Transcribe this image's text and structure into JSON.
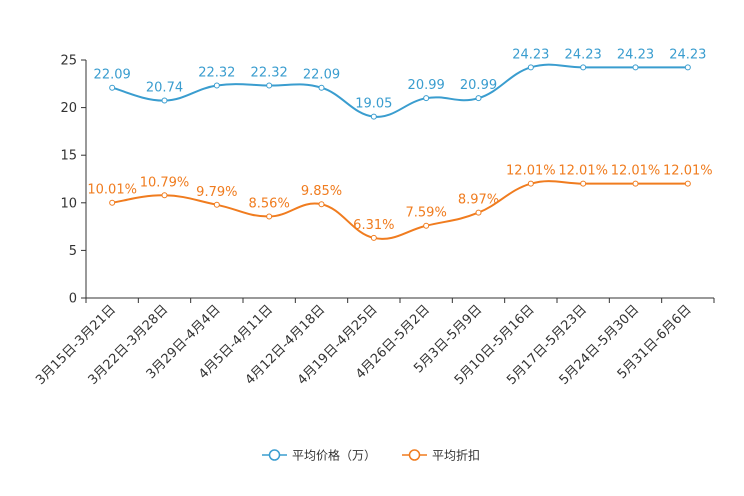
{
  "chart_data": {
    "type": "line",
    "categories": [
      "3月15日-3月21日",
      "3月22日-3月28日",
      "3月29日-4月4日",
      "4月5日-4月11日",
      "4月12日-4月18日",
      "4月19日-4月25日",
      "4月26日-5月2日",
      "5月3日-5月9日",
      "5月10日-5月16日",
      "5月17日-5月23日",
      "5月24日-5月30日",
      "5月31日-6月6日"
    ],
    "ylim": [
      0,
      25
    ],
    "yticks": [
      0,
      5,
      10,
      15,
      20,
      25
    ],
    "series": [
      {
        "name": "平均价格（万）",
        "color": "#3a9dcf",
        "values": [
          22.09,
          20.74,
          22.32,
          22.32,
          22.09,
          19.05,
          20.99,
          20.99,
          24.23,
          24.23,
          24.23,
          24.23
        ],
        "labels": [
          "22.09",
          "20.74",
          "22.32",
          "22.32",
          "22.09",
          "19.05",
          "20.99",
          "20.99",
          "24.23",
          "24.23",
          "24.23",
          "24.23"
        ]
      },
      {
        "name": "平均折扣",
        "color": "#f07c1f",
        "values": [
          10.01,
          10.79,
          9.79,
          8.56,
          9.85,
          6.31,
          7.59,
          8.97,
          12.01,
          12.01,
          12.01,
          12.01
        ],
        "labels": [
          "10.01%",
          "10.79%",
          "9.79%",
          "8.56%",
          "9.85%",
          "6.31%",
          "7.59%",
          "8.97%",
          "12.01%",
          "12.01%",
          "12.01%",
          "12.01%"
        ]
      }
    ],
    "title": "",
    "xlabel": "",
    "ylabel": "",
    "legend_position": "bottom-center"
  }
}
